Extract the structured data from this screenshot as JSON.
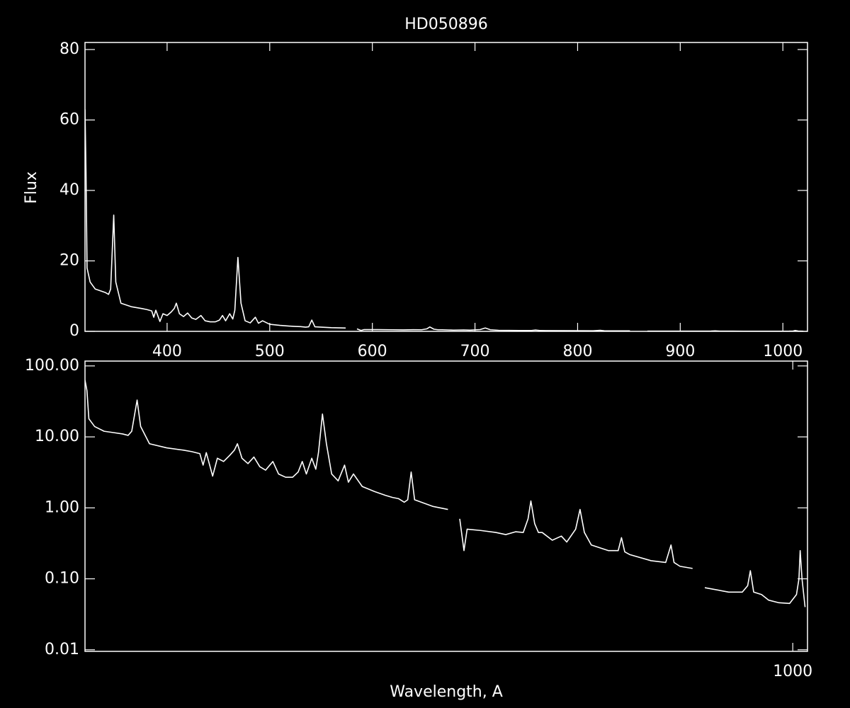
{
  "chart_data": [
    {
      "type": "line",
      "title": "HD050896",
      "y_label": "Flux",
      "xlim": [
        320,
        1024
      ],
      "ylim": [
        0,
        82
      ],
      "xticks": [
        400,
        500,
        600,
        700,
        800,
        900,
        1000
      ],
      "yticks": [
        0,
        20,
        40,
        60,
        80
      ],
      "series": [
        {
          "color": "#ffffff",
          "x": [
            320,
            321,
            322,
            325,
            330,
            335,
            340,
            343,
            345,
            348,
            350,
            355,
            365,
            375,
            380,
            385,
            387,
            389,
            393,
            396,
            400,
            404,
            407,
            409,
            412,
            416,
            420,
            424,
            428,
            433,
            437,
            442,
            447,
            451,
            454,
            457,
            461,
            464,
            466,
            469,
            472,
            476,
            481,
            486,
            489,
            493,
            500,
            510,
            519,
            525,
            530,
            535,
            538,
            541,
            544,
            550,
            560,
            574,
            580,
            585,
            589,
            592,
            605,
            620,
            630,
            640,
            648,
            653,
            656,
            660,
            664,
            668,
            679,
            689,
            695,
            705,
            710,
            715,
            723,
            743,
            755,
            759,
            763,
            769,
            796,
            815,
            822,
            826,
            834,
            851,
            860,
            868,
            902,
            922,
            930,
            934,
            939,
            951,
            962,
            978,
            995,
            1006,
            1010,
            1012,
            1015,
            1020
          ],
          "values": [
            63,
            45,
            18,
            14,
            12,
            11.5,
            11,
            10.5,
            12,
            33,
            14,
            8,
            7,
            6.5,
            6.2,
            5.8,
            4,
            6,
            2.8,
            5,
            4.5,
            5.5,
            6.5,
            8,
            5,
            4.2,
            5.2,
            3.8,
            3.4,
            4.5,
            3,
            2.7,
            2.7,
            3.2,
            4.5,
            3,
            5,
            3.5,
            6,
            21,
            8,
            3,
            2.4,
            4,
            2.3,
            3,
            2,
            1.7,
            1.5,
            1.4,
            1.35,
            1.2,
            1.3,
            3.2,
            1.3,
            1.2,
            1.05,
            0.95,
            null,
            0.7,
            0.25,
            0.5,
            0.48,
            0.45,
            0.42,
            0.46,
            0.45,
            0.7,
            1.25,
            0.6,
            0.45,
            0.45,
            0.35,
            0.4,
            0.33,
            0.5,
            0.95,
            0.45,
            0.3,
            0.25,
            0.25,
            0.38,
            0.24,
            0.22,
            0.18,
            0.17,
            0.3,
            0.17,
            0.15,
            0.14,
            null,
            0.075,
            0.065,
            0.065,
            0.08,
            0.13,
            0.065,
            0.06,
            0.05,
            0.046,
            0.045,
            0.06,
            0.1,
            0.25,
            0.1,
            0.04
          ]
        }
      ]
    },
    {
      "type": "line",
      "x_label": "Wavelength, A",
      "log_x": true,
      "log_y": true,
      "xlim": [
        320,
        1024
      ],
      "ylim": [
        0.0095,
        117
      ],
      "xticks": [
        1000
      ],
      "yticks": [
        {
          "value": 100,
          "label": "100.00"
        },
        {
          "value": 10,
          "label": "10.00"
        },
        {
          "value": 1,
          "label": "1.00"
        },
        {
          "value": 0.1,
          "label": "0.10"
        },
        {
          "value": 0.01,
          "label": "0.01"
        }
      ],
      "series": [
        {
          "color": "#ffffff",
          "x": [
            320,
            321,
            322,
            325,
            330,
            335,
            340,
            343,
            345,
            348,
            350,
            355,
            365,
            375,
            380,
            385,
            387,
            389,
            393,
            396,
            400,
            404,
            407,
            409,
            412,
            416,
            420,
            424,
            428,
            433,
            437,
            442,
            447,
            451,
            454,
            457,
            461,
            464,
            466,
            469,
            472,
            476,
            481,
            486,
            489,
            493,
            500,
            510,
            519,
            525,
            530,
            535,
            538,
            541,
            544,
            550,
            560,
            574,
            580,
            585,
            589,
            592,
            605,
            620,
            630,
            640,
            648,
            653,
            656,
            660,
            664,
            668,
            679,
            689,
            695,
            705,
            710,
            715,
            723,
            743,
            755,
            759,
            763,
            769,
            796,
            815,
            822,
            826,
            834,
            851,
            860,
            868,
            902,
            922,
            930,
            934,
            939,
            951,
            962,
            978,
            995,
            1006,
            1010,
            1012,
            1015,
            1020
          ],
          "values": [
            63,
            45,
            18,
            14,
            12,
            11.5,
            11,
            10.5,
            12,
            33,
            14,
            8,
            7,
            6.5,
            6.2,
            5.8,
            4,
            6,
            2.8,
            5,
            4.5,
            5.5,
            6.5,
            8,
            5,
            4.2,
            5.2,
            3.8,
            3.4,
            4.5,
            3,
            2.7,
            2.7,
            3.2,
            4.5,
            3,
            5,
            3.5,
            6,
            21,
            8,
            3,
            2.4,
            4,
            2.3,
            3,
            2,
            1.7,
            1.5,
            1.4,
            1.35,
            1.2,
            1.3,
            3.2,
            1.3,
            1.2,
            1.05,
            0.95,
            null,
            0.7,
            0.25,
            0.5,
            0.48,
            0.45,
            0.42,
            0.46,
            0.45,
            0.7,
            1.25,
            0.6,
            0.45,
            0.45,
            0.35,
            0.4,
            0.33,
            0.5,
            0.95,
            0.45,
            0.3,
            0.25,
            0.25,
            0.38,
            0.24,
            0.22,
            0.18,
            0.17,
            0.3,
            0.17,
            0.15,
            0.14,
            null,
            0.075,
            0.065,
            0.065,
            0.08,
            0.13,
            0.065,
            0.06,
            0.05,
            0.046,
            0.045,
            0.06,
            0.1,
            0.25,
            0.1,
            0.04
          ]
        }
      ]
    }
  ]
}
